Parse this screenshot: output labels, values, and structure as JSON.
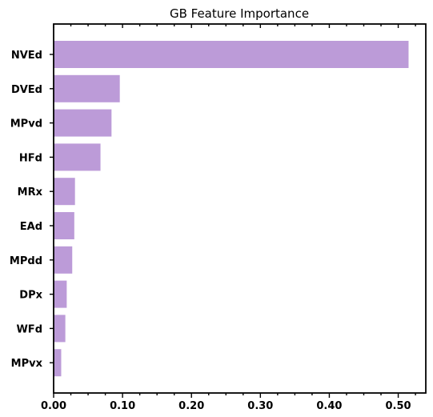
{
  "chart_data": {
    "type": "bar",
    "orientation": "horizontal",
    "title": "GB Feature Importance",
    "xlabel": "",
    "ylabel": "",
    "xlim": [
      0,
      0.54
    ],
    "x_ticks": [
      0.0,
      0.1,
      0.2,
      0.3,
      0.4,
      0.5
    ],
    "x_tick_labels": [
      "0.00",
      "0.10",
      "0.20",
      "0.30",
      "0.40",
      "0.50"
    ],
    "categories": [
      "NVEd",
      "DVEd",
      "MPvd",
      "HFd",
      "MRx",
      "EAd",
      "MPdd",
      "DPx",
      "WFd",
      "MPvx"
    ],
    "values": [
      0.515,
      0.096,
      0.084,
      0.068,
      0.031,
      0.03,
      0.027,
      0.019,
      0.017,
      0.011
    ],
    "bar_color": "#bc9bd8",
    "grid": false
  }
}
